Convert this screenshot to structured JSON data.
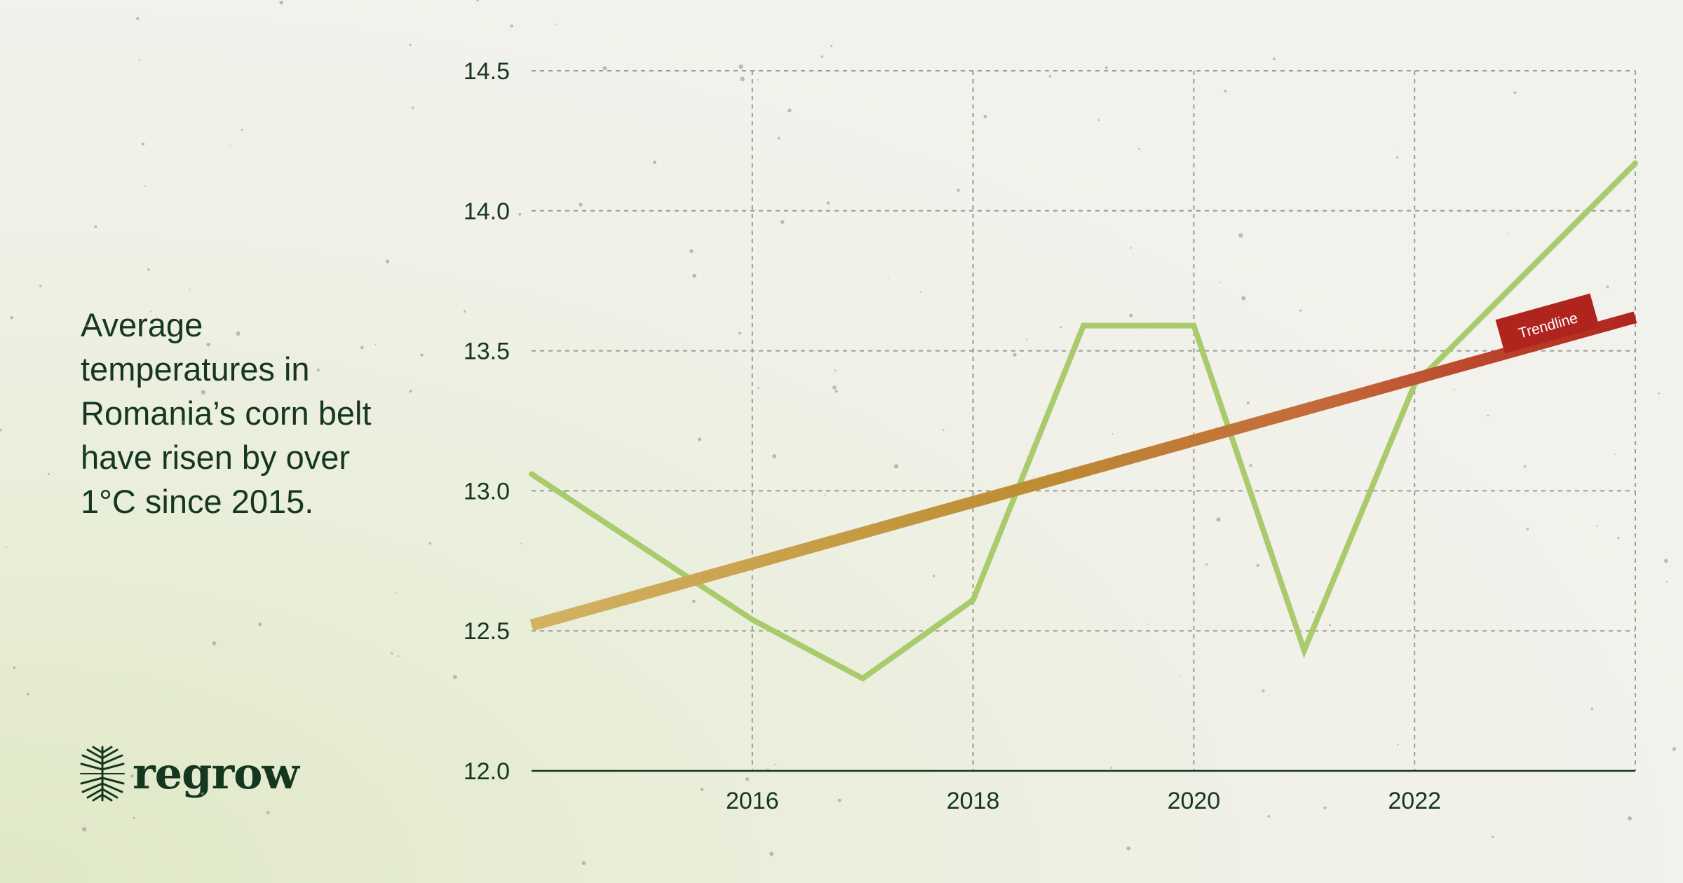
{
  "headline": "Average\ntemperatures in\nRomania’s corn belt\nhave risen by over\n1°C since 2015.",
  "brand": {
    "name": "regrow",
    "logo_icon": "tree-roots-icon",
    "color": "#15371f"
  },
  "colors": {
    "line": "#a9cb6c",
    "trend_start": "#d3b363",
    "trend_mid": "#bd8d33",
    "trend_end": "#b0241e",
    "text": "#15371f"
  },
  "chart_data": {
    "type": "line",
    "title": "",
    "xlabel": "",
    "ylabel": "",
    "xlim": [
      2014,
      2024
    ],
    "ylim": [
      12.0,
      14.5
    ],
    "xticks": [
      2016,
      2018,
      2020,
      2022
    ],
    "xtick_labels": [
      "2016",
      "2018",
      "2020",
      "2022"
    ],
    "yticks": [
      12.0,
      12.5,
      13.0,
      13.5,
      14.0,
      14.5
    ],
    "ytick_labels": [
      "12.0",
      "12.5",
      "13.0",
      "13.5",
      "14.0",
      "14.5"
    ],
    "grid": true,
    "series": [
      {
        "x": [
          2014,
          2016,
          2017,
          2018,
          2019,
          2020,
          2021,
          2022,
          2024
        ],
        "values": [
          13.06,
          12.54,
          12.33,
          12.61,
          13.59,
          13.59,
          12.43,
          13.38,
          14.17
        ]
      }
    ],
    "trendline": {
      "label": "Trendline",
      "x": [
        2014,
        2024
      ],
      "values": [
        12.52,
        13.62
      ]
    }
  }
}
